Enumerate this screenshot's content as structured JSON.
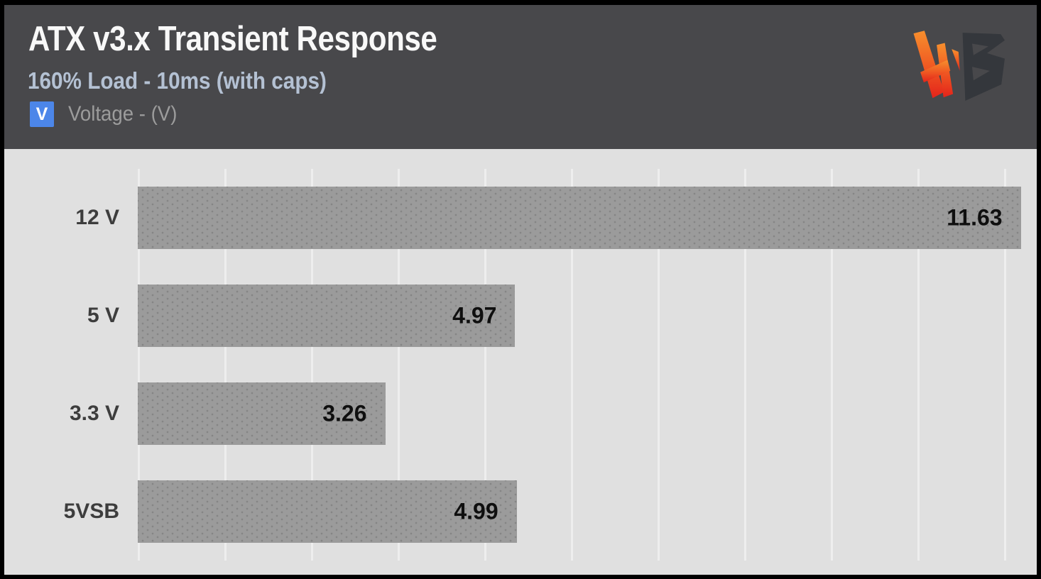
{
  "header": {
    "title": "ATX v3.x Transient Response",
    "subtitle": "160% Load - 10ms (with caps)",
    "legend": {
      "badge": "V",
      "label": "Voltage - (V)",
      "badge_color": "#4c86e9"
    },
    "logo": "hardware-busters-logo"
  },
  "chart_data": {
    "type": "bar",
    "orientation": "horizontal",
    "title": "ATX v3.x Transient Response",
    "subtitle": "160% Load - 10ms (with caps)",
    "series_label": "Voltage - (V)",
    "categories": [
      "12 V",
      "5 V",
      "3.3 V",
      "5VSB"
    ],
    "values": [
      11.63,
      4.97,
      3.26,
      4.99
    ],
    "value_labels": [
      "11.63",
      "4.97",
      "3.26",
      "4.99"
    ],
    "xlim": [
      0,
      11.84
    ],
    "grid": "vertical-gridlines-on",
    "legend_position": "top-left",
    "colors": {
      "bar": "#9b9b9b",
      "plot_background": "#e0e0e0",
      "header_background": "#48484b",
      "gridline": "#eeeeee",
      "value_text": "#0f0f0f",
      "category_text": "#3d3d3d",
      "subtitle_text": "#b4c1d3",
      "legend_badge": "#4c86e9",
      "logo_orange": "#f78f2d",
      "logo_red": "#e3241b",
      "logo_dark": "#34373c"
    }
  }
}
